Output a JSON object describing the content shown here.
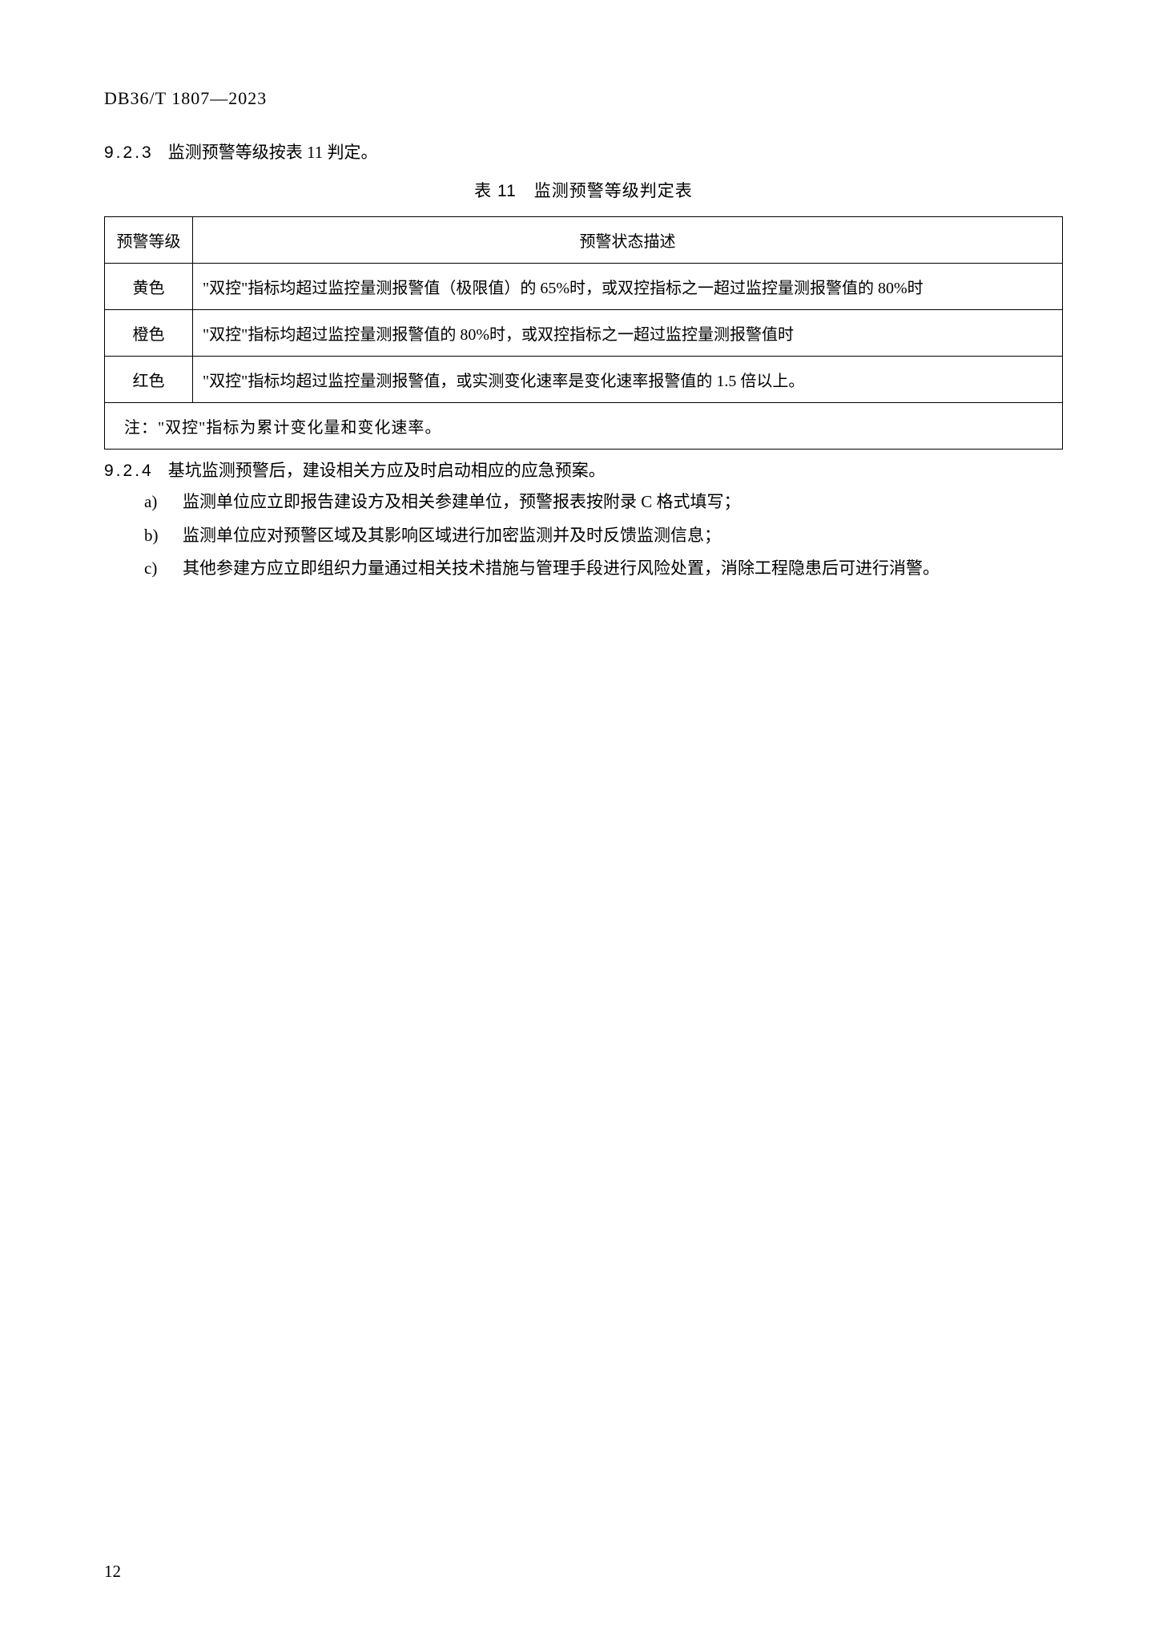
{
  "header": {
    "doc_id": "DB36/T 1807—2023"
  },
  "section_923": {
    "number": "9.2.3",
    "text": "监测预警等级按表 11 判定。"
  },
  "table": {
    "caption": "表 11　监测预警等级判定表",
    "columns": [
      "预警等级",
      "预警状态描述"
    ],
    "rows": [
      {
        "level": "黄色",
        "desc": "\"双控\"指标均超过监控量测报警值（极限值）的 65%时，或双控指标之一超过监控量测报警值的 80%时"
      },
      {
        "level": "橙色",
        "desc": "\"双控\"指标均超过监控量测报警值的 80%时，或双控指标之一超过监控量测报警值时"
      },
      {
        "level": "红色",
        "desc": "\"双控\"指标均超过监控量测报警值，或实测变化速率是变化速率报警值的 1.5 倍以上。"
      }
    ],
    "note": "注：\"双控\"指标为累计变化量和变化速率。"
  },
  "section_924": {
    "number": "9.2.4",
    "text": "基坑监测预警后，建设相关方应及时启动相应的应急预案。",
    "items": [
      {
        "marker": "a)",
        "text": "监测单位应立即报告建设方及相关参建单位，预警报表按附录 C 格式填写；"
      },
      {
        "marker": "b)",
        "text": "监测单位应对预警区域及其影响区域进行加密监测并及时反馈监测信息；"
      },
      {
        "marker": "c)",
        "text": "其他参建方应立即组织力量通过相关技术措施与管理手段进行风险处置，消除工程隐患后可进行消警。"
      }
    ]
  },
  "page_number": "12"
}
